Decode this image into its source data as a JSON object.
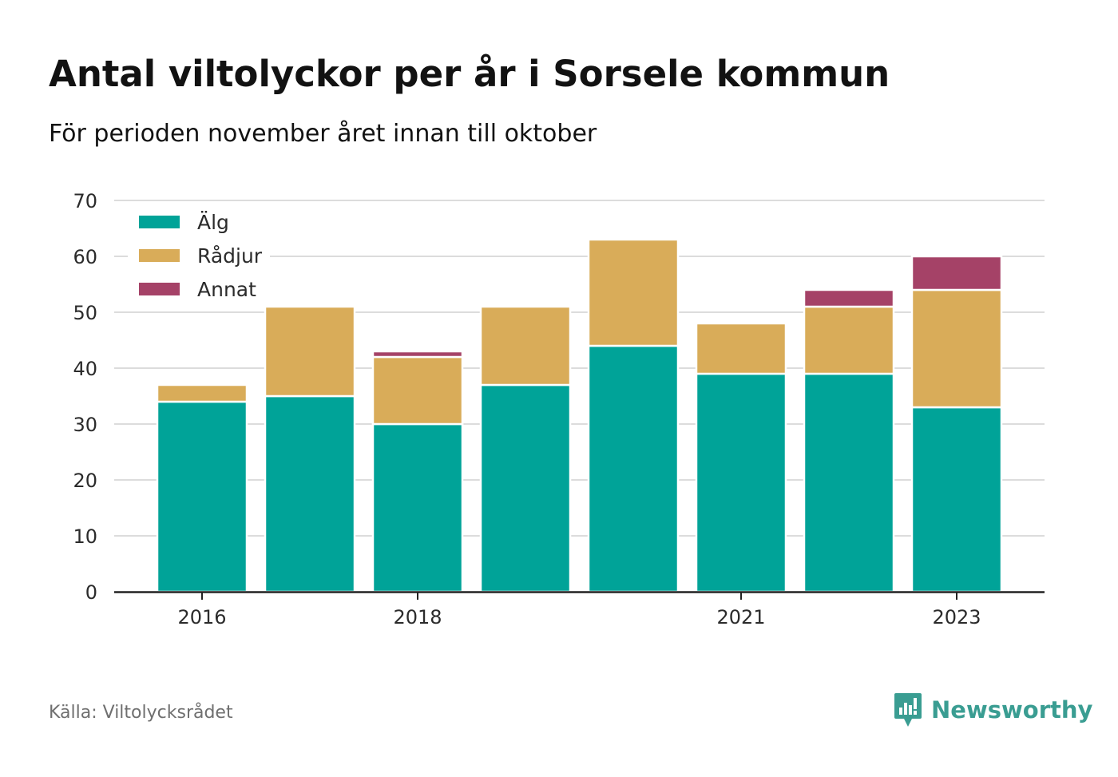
{
  "title": "Antal viltolyckor per år i Sorsele kommun",
  "subtitle": "För perioden november året innan till oktober",
  "source": "Källa: Viltolycksrådet",
  "brand": {
    "name": "Newsworthy",
    "icon": "newsworthy-logo-icon",
    "color": "#3a9d92"
  },
  "chart_data": {
    "type": "bar",
    "stacked": true,
    "categories": [
      "2016",
      "2017",
      "2018",
      "2019",
      "2020",
      "2021",
      "2022",
      "2023"
    ],
    "x_tick_labels": [
      "2016",
      "2018",
      "2021",
      "2023"
    ],
    "series": [
      {
        "name": "Älg",
        "color": "#00a398",
        "values": [
          34,
          35,
          30,
          37,
          44,
          39,
          39,
          33
        ]
      },
      {
        "name": "Rådjur",
        "color": "#d9ac59",
        "values": [
          3,
          16,
          12,
          14,
          19,
          9,
          12,
          21
        ]
      },
      {
        "name": "Annat",
        "color": "#a54267",
        "values": [
          0,
          0,
          1,
          0,
          0,
          0,
          3,
          6
        ]
      }
    ],
    "ylim": [
      0,
      70
    ],
    "yticks": [
      0,
      10,
      20,
      30,
      40,
      50,
      60,
      70
    ],
    "grid": true,
    "legend": "top-left",
    "xlabel": "",
    "ylabel": ""
  }
}
